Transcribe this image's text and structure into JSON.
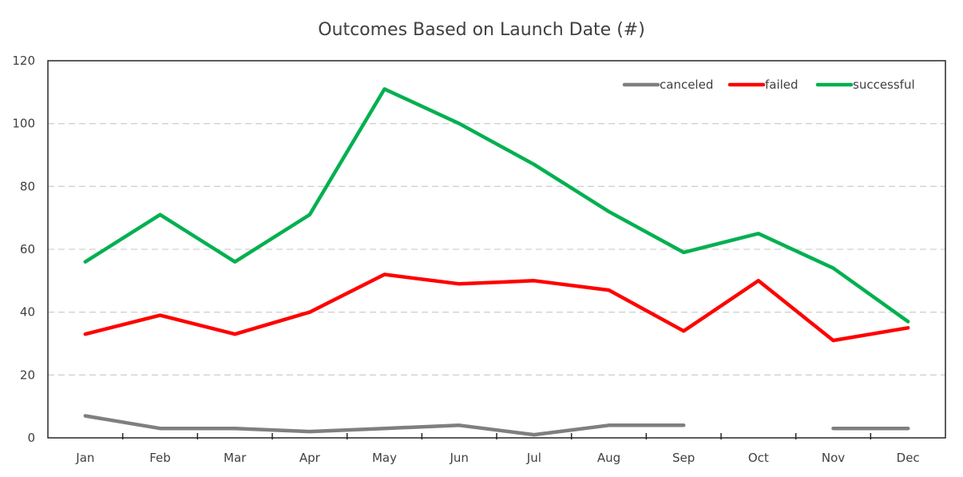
{
  "chart_data": {
    "type": "line",
    "title": "Outcomes Based on Launch Date (#)",
    "xlabel": "",
    "ylabel": "",
    "categories": [
      "Jan",
      "Feb",
      "Mar",
      "Apr",
      "May",
      "Jun",
      "Jul",
      "Aug",
      "Sep",
      "Oct",
      "Nov",
      "Dec"
    ],
    "ylim": [
      0,
      120
    ],
    "yticks": [
      0,
      20,
      40,
      60,
      80,
      100,
      120
    ],
    "grid": true,
    "grid_style": "dashed-horizontal",
    "legend_position": "top-right",
    "series": [
      {
        "name": "canceled",
        "color": "#7f7f7f",
        "values": [
          7,
          3,
          3,
          2,
          3,
          4,
          1,
          4,
          4,
          null,
          3,
          3
        ]
      },
      {
        "name": "failed",
        "color": "#ff0000",
        "values": [
          33,
          39,
          33,
          40,
          52,
          49,
          50,
          47,
          34,
          50,
          31,
          35
        ]
      },
      {
        "name": "successful",
        "color": "#00b050",
        "values": [
          56,
          71,
          56,
          71,
          111,
          100,
          87,
          72,
          59,
          65,
          54,
          37
        ]
      }
    ]
  }
}
